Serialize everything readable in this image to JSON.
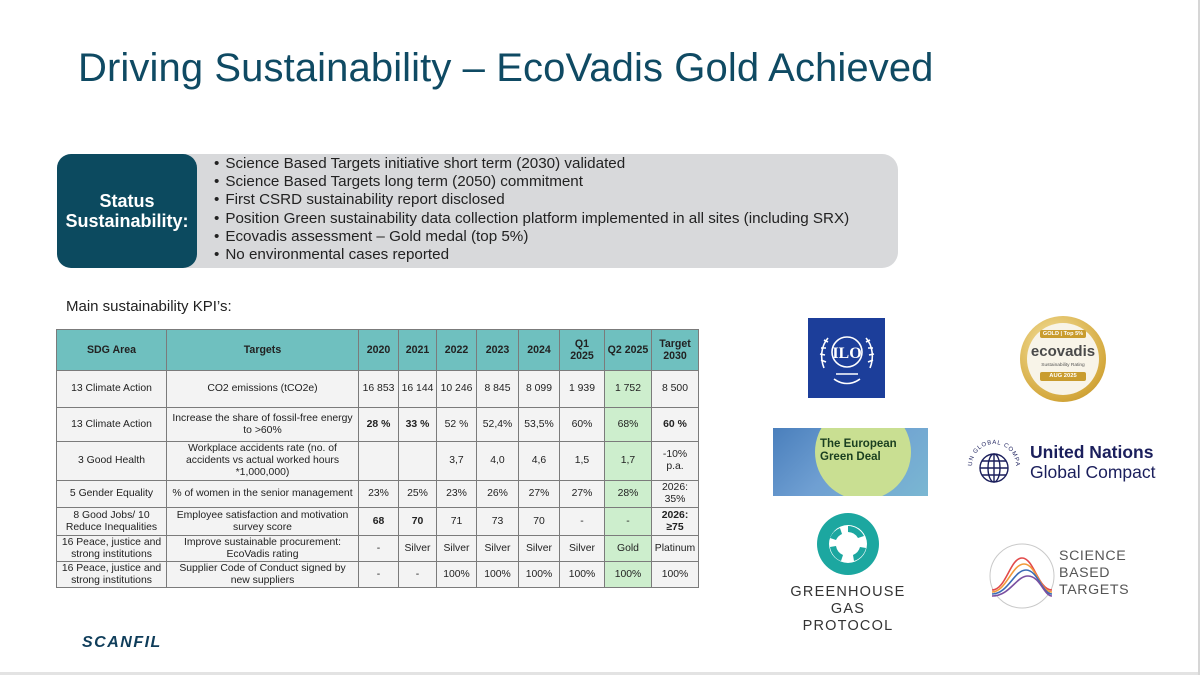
{
  "title": "Driving Sustainability – EcoVadis Gold Achieved",
  "status": {
    "label_line1": "Status",
    "label_line2": "Sustainability:",
    "bullets": [
      "Science Based Targets initiative short term (2030) validated",
      "Science Based Targets long term (2050) commitment",
      "First CSRD sustainability report disclosed",
      "Position Green sustainability data collection platform implemented in all sites (including SRX)",
      "Ecovadis assessment – Gold medal (top 5%)",
      "No environmental cases reported"
    ]
  },
  "kpi": {
    "heading": "Main sustainability KPI’s:",
    "headers": [
      "SDG Area",
      "Targets",
      "2020",
      "2021",
      "2022",
      "2023",
      "2024",
      "Q1 2025",
      "Q2 2025",
      "Target 2030"
    ],
    "rows": [
      [
        "13 Climate Action",
        "CO2 emissions (tCO2e)",
        "16 853",
        "16 144",
        "10 246",
        "8 845",
        "8 099",
        "1 939",
        "1 752",
        "8 500"
      ],
      [
        "13 Climate Action",
        "Increase the share of fossil-free energy to >60%",
        "28 %",
        "33 %",
        "52 %",
        "52,4%",
        "53,5%",
        "60%",
        "68%",
        "60 %"
      ],
      [
        "3 Good Health",
        "Workplace accidents rate (no. of accidents vs actual worked hours *1,000,000)",
        "",
        "",
        "3,7",
        "4,0",
        "4,6",
        "1,5",
        "1,7",
        "-10% p.a."
      ],
      [
        "5 Gender Equality",
        "% of women in the senior management",
        "23%",
        "25%",
        "23%",
        "26%",
        "27%",
        "27%",
        "28%",
        "2026: 35%"
      ],
      [
        "8 Good Jobs/ 10 Reduce Inequalities",
        "Employee satisfaction and motivation survey score",
        "68",
        "70",
        "71",
        "73",
        "70",
        "-",
        "-",
        "2026: ≥75"
      ],
      [
        "16 Peace, justice and strong institutions",
        "Improve sustainable procurement: EcoVadis rating",
        "-",
        "Silver",
        "Silver",
        "Silver",
        "Silver",
        "Silver",
        "Gold",
        "Platinum"
      ],
      [
        "16 Peace, justice and strong institutions",
        "Supplier Code of Conduct signed by new suppliers",
        "-",
        "-",
        "100%",
        "100%",
        "100%",
        "100%",
        "100%",
        "100%"
      ]
    ]
  },
  "logos": {
    "ilo": "ILO",
    "ecovadis": {
      "badge": "GOLD | Top 5%",
      "name": "ecovadis",
      "sub": "Sustainability Rating",
      "date": "AUG 2025"
    },
    "green_deal": {
      "line1": "The European",
      "line2": "Green Deal"
    },
    "ungc": {
      "line1": "United Nations",
      "line2": "Global Compact",
      "ring": "UN GLOBAL COMPACT"
    },
    "ghg": {
      "line1": "GREENHOUSE",
      "line2": "GAS PROTOCOL"
    },
    "sbt": {
      "line1": "SCIENCE",
      "line2": "BASED",
      "line3": "TARGETS"
    }
  },
  "brand": "SCANFIL",
  "colors": {
    "title": "#0f4a63",
    "status_box": "#0c4a5f",
    "table_header": "#6fc0bf",
    "q2_highlight": "#cdeecd"
  }
}
